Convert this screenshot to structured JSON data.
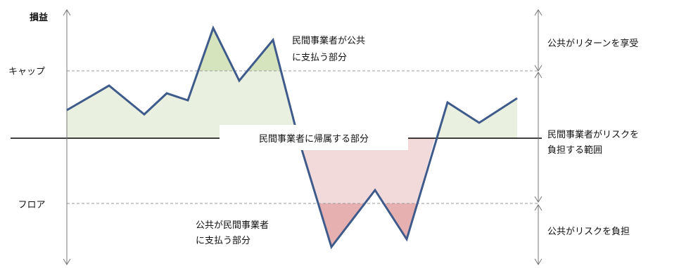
{
  "labels": {
    "y_axis": "損益",
    "cap": "キャップ",
    "floor": "フロア",
    "upper_note_1": "民間事業者が公共",
    "upper_note_2": "に支払う部分",
    "center_note": "民間事業者に帰属する部分",
    "lower_note_1": "公共が民間事業者",
    "lower_note_2": "に支払う部分"
  },
  "right_labels": {
    "top": "公共がリターンを享受",
    "middle_1": "民間事業者がリスクを",
    "middle_2": "負担する範囲",
    "bottom": "公共がリスクを負担"
  },
  "colors": {
    "line": "#3f5b8c",
    "green_fill": "#eaf0df",
    "green_dark_fill": "#d6e4bd",
    "red_fill": "#f3dada",
    "red_dark_fill": "#e7b0b0"
  }
}
